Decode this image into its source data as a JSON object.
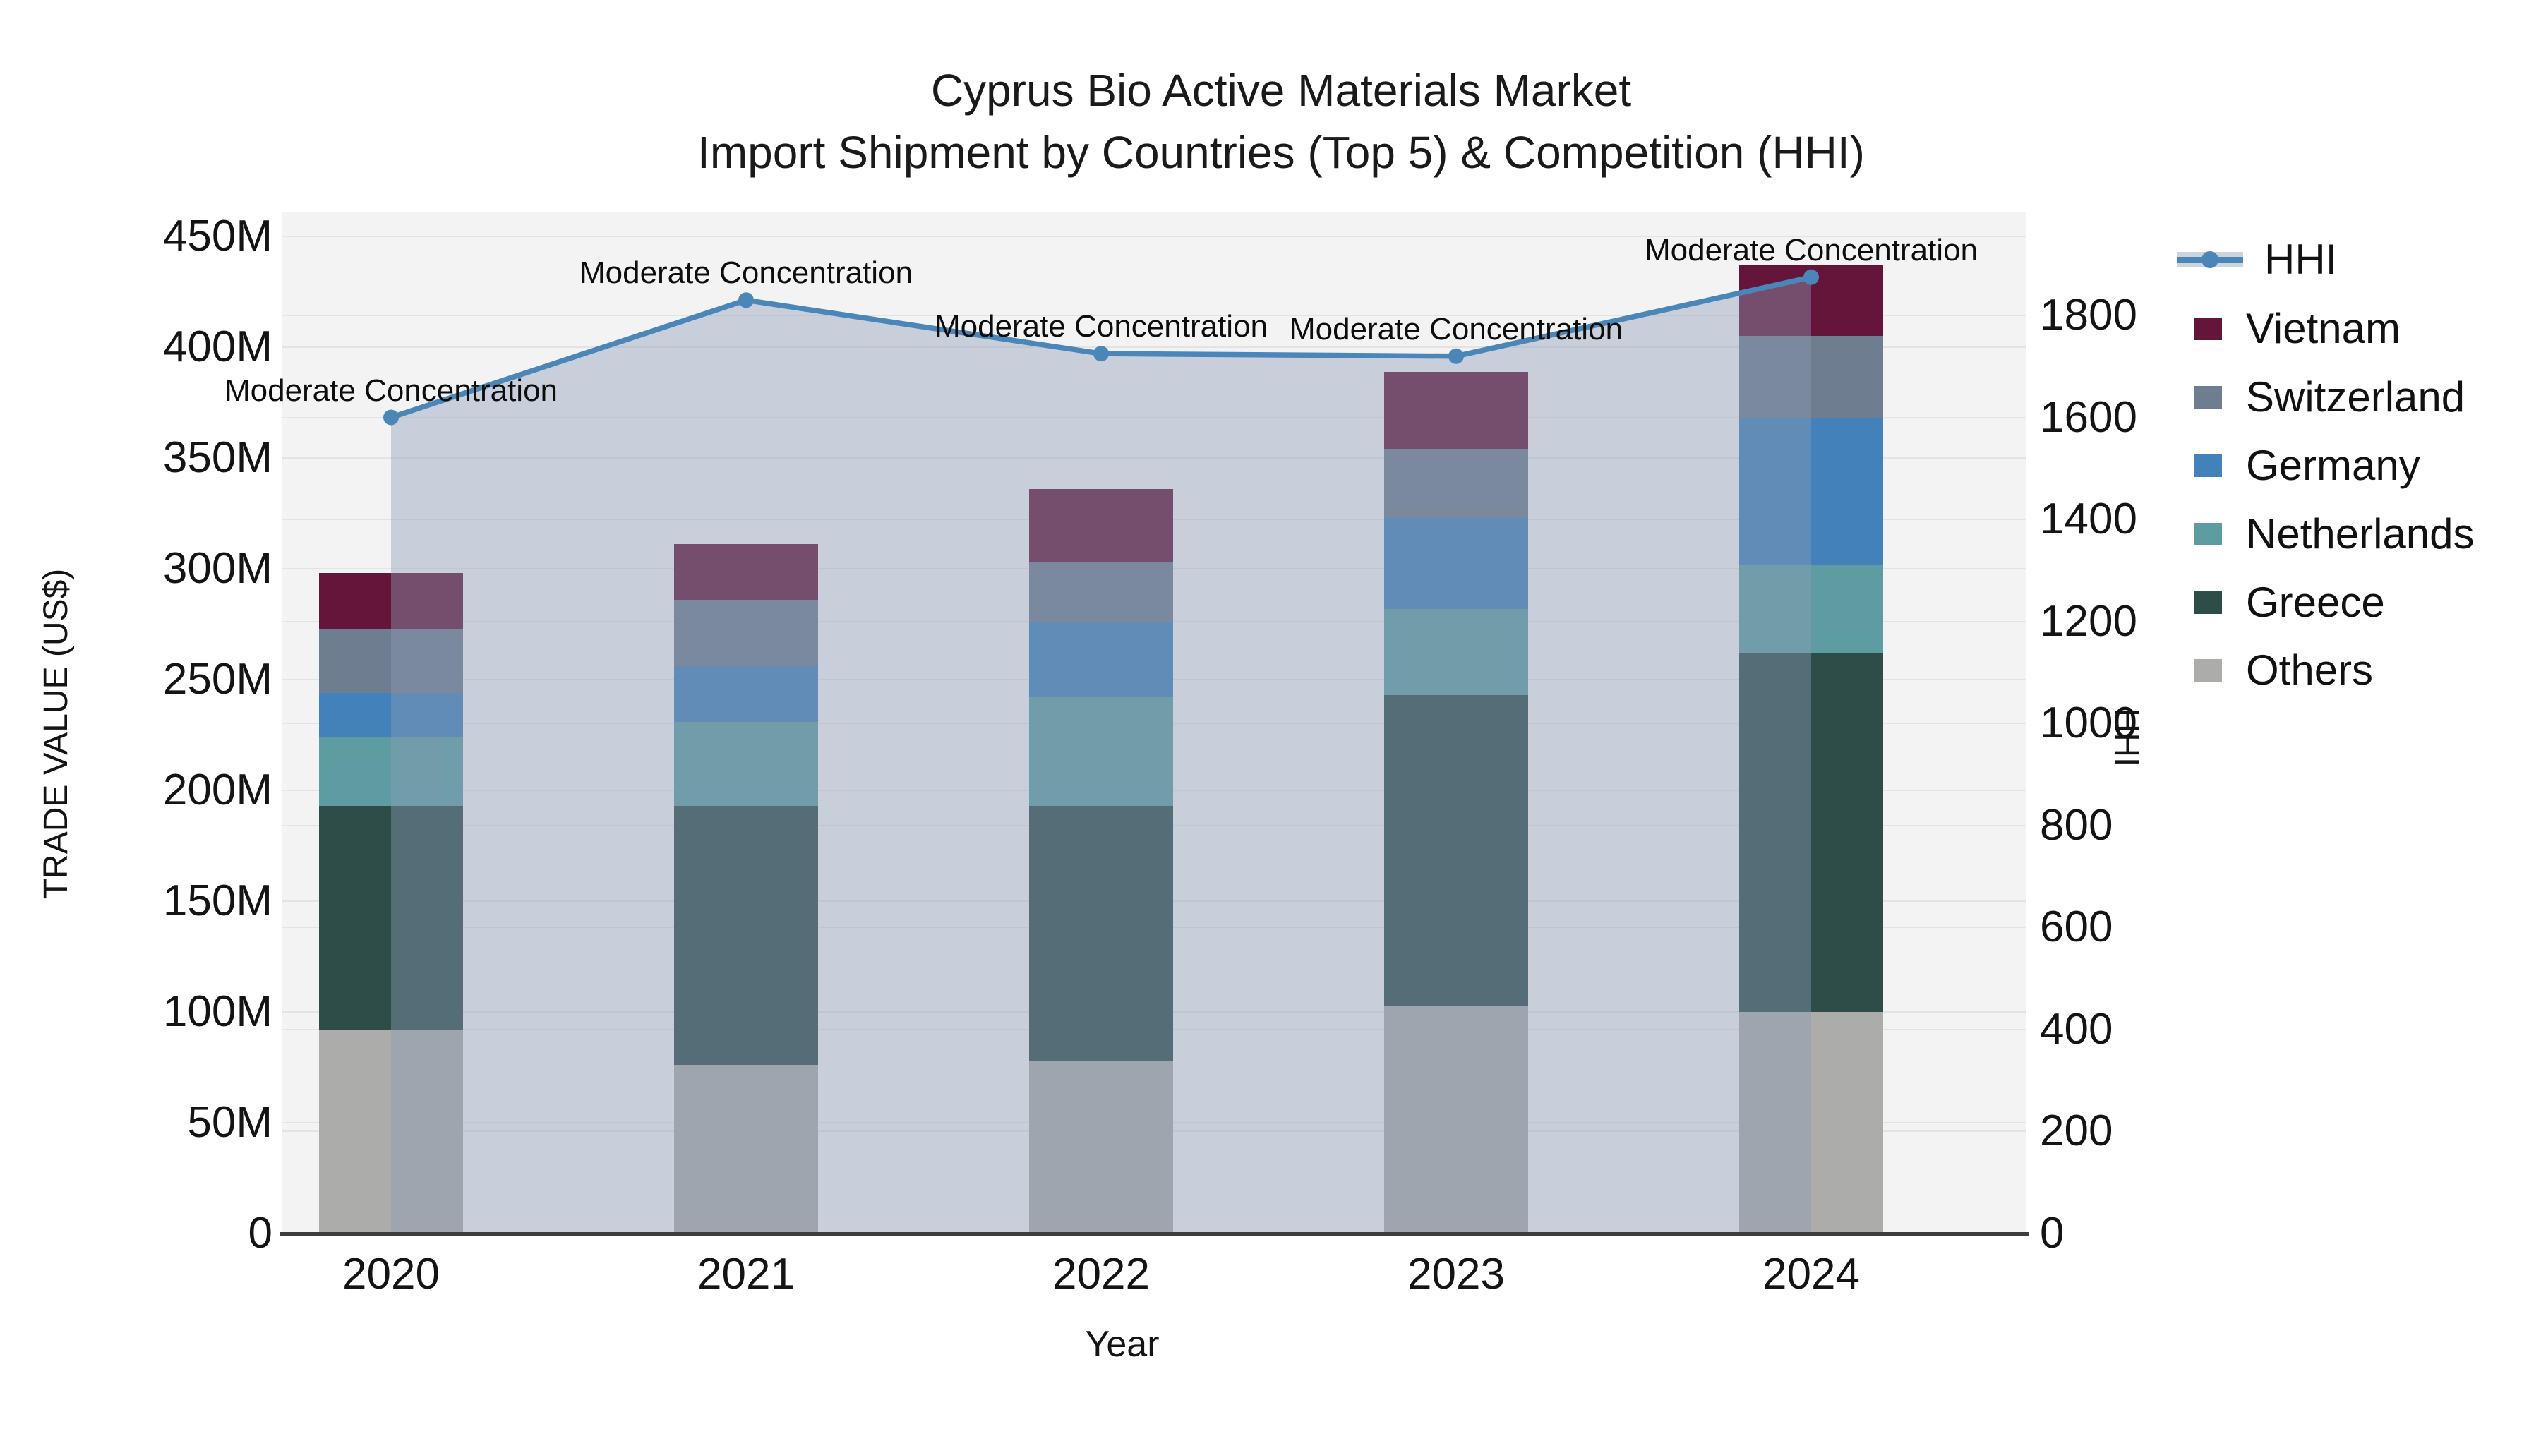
{
  "title": {
    "line1": "Cyprus Bio Active Materials Market",
    "line2": "Import Shipment by Countries (Top 5) & Competition (HHI)"
  },
  "axes": {
    "left": {
      "label": "TRADE VALUE (US$)",
      "ticks": [
        "0",
        "50M",
        "100M",
        "150M",
        "200M",
        "250M",
        "300M",
        "350M",
        "400M",
        "450M"
      ]
    },
    "right": {
      "label": "HHI",
      "ticks": [
        "0",
        "200",
        "400",
        "600",
        "800",
        "1000",
        "1200",
        "1400",
        "1600",
        "1800"
      ]
    },
    "x": {
      "label": "Year",
      "categories": [
        "2020",
        "2021",
        "2022",
        "2023",
        "2024"
      ]
    }
  },
  "legend": {
    "items": [
      {
        "label": "HHI",
        "type": "line",
        "color": "#4a86b8"
      },
      {
        "label": "Vietnam",
        "type": "swatch",
        "color": "#641539"
      },
      {
        "label": "Switzerland",
        "type": "swatch",
        "color": "#6e7d8f"
      },
      {
        "label": "Germany",
        "type": "swatch",
        "color": "#4381bb"
      },
      {
        "label": "Netherlands",
        "type": "swatch",
        "color": "#5d9da1"
      },
      {
        "label": "Greece",
        "type": "swatch",
        "color": "#2e4d49"
      },
      {
        "label": "Others",
        "type": "swatch",
        "color": "#acacab"
      }
    ]
  },
  "colors": {
    "hhi_line": "#4a86b8",
    "hhi_area": "#8d9cb4",
    "hhi_area_opacity": 0.42,
    "legend_band": "#ccd4de",
    "plot_bg": "#f3f3f4",
    "gridline": "#e3e3e5",
    "axis_line": "#3d3d3d"
  },
  "chart_data": {
    "type": "bar+line",
    "title": "Cyprus Bio Active Materials Market — Import Shipment by Countries (Top 5) & Competition (HHI)",
    "categories": [
      "2020",
      "2021",
      "2022",
      "2023",
      "2024"
    ],
    "stacked_bar_series": [
      {
        "name": "Others",
        "color": "#acacab",
        "values": [
          92,
          76,
          78,
          103,
          100
        ]
      },
      {
        "name": "Greece",
        "color": "#2e4d49",
        "values": [
          101,
          117,
          115,
          140,
          162
        ]
      },
      {
        "name": "Netherlands",
        "color": "#5d9da1",
        "values": [
          31,
          38,
          49,
          39,
          40
        ]
      },
      {
        "name": "Germany",
        "color": "#4381bb",
        "values": [
          20,
          25,
          34,
          41,
          66
        ]
      },
      {
        "name": "Switzerland",
        "color": "#6e7d8f",
        "values": [
          29,
          30,
          27,
          31,
          37
        ]
      },
      {
        "name": "Vietnam",
        "color": "#641539",
        "values": [
          25,
          25,
          33,
          35,
          32
        ]
      }
    ],
    "bar_totals_millions": [
      298,
      311,
      336,
      389,
      437
    ],
    "line_series": {
      "name": "HHI",
      "color": "#4a86b8",
      "values": [
        1600,
        1830,
        1725,
        1720,
        1875
      ]
    },
    "annotations": [
      "Moderate Concentration",
      "Moderate Concentration",
      "Moderate Concentration",
      "Moderate Concentration",
      "Moderate Concentration"
    ],
    "left_axis": {
      "label": "TRADE VALUE (US$)",
      "unit": "M",
      "range": [
        0,
        450
      ],
      "tick_step": 50
    },
    "right_axis": {
      "label": "HHI",
      "range": [
        0,
        1800
      ],
      "tick_step": 200
    },
    "xlabel": "Year",
    "grid": true,
    "legend_position": "right"
  }
}
